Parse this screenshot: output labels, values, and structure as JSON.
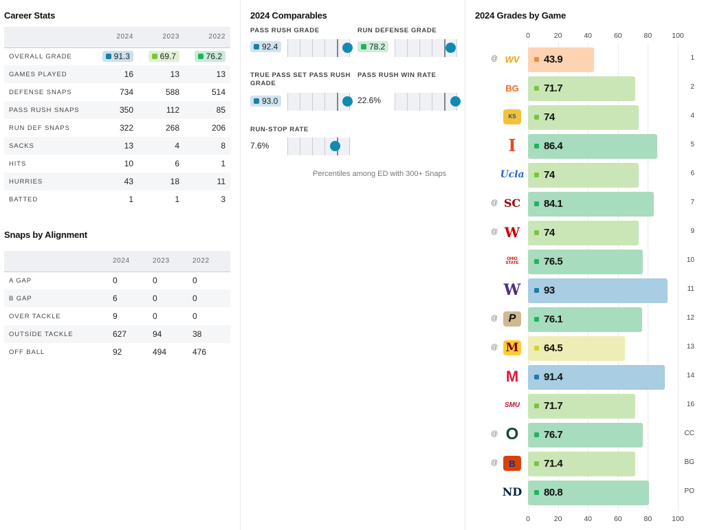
{
  "colors": {
    "elite": "#1b7fa6",
    "high": "#21b35c",
    "good": "#7cc43c",
    "average": "#d8cf2c",
    "below": "#f08a3c",
    "bar_elite": "#a9cde2",
    "bar_high": "#a8dcbe",
    "bar_good": "#cbe6b6",
    "bar_average": "#eeedb6",
    "bar_below": "#fdd3b3",
    "dot": "#118ab2"
  },
  "career": {
    "title": "Career Stats",
    "years": [
      "2024",
      "2023",
      "2022"
    ],
    "overall": {
      "label": "OVERALL GRADE",
      "grades": [
        {
          "value": "91.3",
          "tier": "elite"
        },
        {
          "value": "69.7",
          "tier": "good"
        },
        {
          "value": "76.2",
          "tier": "high"
        }
      ]
    },
    "rows": [
      {
        "label": "GAMES PLAYED",
        "values": [
          "16",
          "13",
          "13"
        ]
      },
      {
        "label": "DEFENSE SNAPS",
        "values": [
          "734",
          "588",
          "514"
        ]
      },
      {
        "label": "PASS RUSH SNAPS",
        "values": [
          "350",
          "112",
          "85"
        ]
      },
      {
        "label": "RUN DEF SNAPS",
        "values": [
          "322",
          "268",
          "206"
        ]
      },
      {
        "label": "SACKS",
        "values": [
          "13",
          "4",
          "8"
        ]
      },
      {
        "label": "HITS",
        "values": [
          "10",
          "6",
          "1"
        ]
      },
      {
        "label": "HURRIES",
        "values": [
          "43",
          "18",
          "11"
        ]
      },
      {
        "label": "BATTED",
        "values": [
          "1",
          "1",
          "3"
        ]
      }
    ]
  },
  "alignment": {
    "title": "Snaps by Alignment",
    "years": [
      "2024",
      "2023",
      "2022"
    ],
    "rows": [
      {
        "label": "A GAP",
        "values": [
          "0",
          "0",
          "0"
        ]
      },
      {
        "label": "B GAP",
        "values": [
          "6",
          "0",
          "0"
        ]
      },
      {
        "label": "OVER TACKLE",
        "values": [
          "9",
          "0",
          "0"
        ]
      },
      {
        "label": "OUTSIDE TACKLE",
        "values": [
          "627",
          "94",
          "38"
        ]
      },
      {
        "label": "OFF BALL",
        "values": [
          "92",
          "494",
          "476"
        ]
      }
    ]
  },
  "comparables": {
    "title": "2024 Comparables",
    "items": [
      {
        "label": "PASS RUSH GRADE",
        "value": "92.4",
        "tier": "elite",
        "percentile": 0.97
      },
      {
        "label": "RUN DEFENSE GRADE",
        "value": "78.2",
        "tier": "high",
        "percentile": 0.9
      },
      {
        "label": "TRUE PASS SET PASS RUSH GRADE",
        "value": "93.0",
        "tier": "elite",
        "percentile": 0.97
      },
      {
        "label": "PASS RUSH WIN RATE",
        "value": "22.6%",
        "tier": null,
        "percentile": 0.98
      },
      {
        "label": "RUN-STOP RATE",
        "value": "7.6%",
        "tier": null,
        "percentile": 0.77
      }
    ],
    "footnote": "Percentiles among ED with 300+ Snaps"
  },
  "games": {
    "title": "2024 Grades by Game",
    "axis_ticks": [
      "0",
      "20",
      "40",
      "60",
      "80",
      "100"
    ],
    "axis_max": 100,
    "rows": [
      {
        "away": true,
        "logo": "west-virginia-logo",
        "grade": "43.9",
        "tier": "below",
        "week": "1"
      },
      {
        "away": false,
        "logo": "bowling-green-logo",
        "grade": "71.7",
        "tier": "good",
        "week": "2"
      },
      {
        "away": false,
        "logo": "kent-state-logo",
        "grade": "74",
        "tier": "good",
        "week": "4"
      },
      {
        "away": false,
        "logo": "illinois-logo",
        "grade": "86.4",
        "tier": "high",
        "week": "5"
      },
      {
        "away": false,
        "logo": "ucla-logo",
        "grade": "74",
        "tier": "good",
        "week": "6"
      },
      {
        "away": true,
        "logo": "usc-logo",
        "grade": "84.1",
        "tier": "high",
        "week": "7"
      },
      {
        "away": true,
        "logo": "wisconsin-logo",
        "grade": "74",
        "tier": "good",
        "week": "9"
      },
      {
        "away": false,
        "logo": "ohio-state-logo",
        "grade": "76.5",
        "tier": "high",
        "week": "10"
      },
      {
        "away": false,
        "logo": "washington-logo",
        "grade": "93",
        "tier": "elite",
        "week": "11"
      },
      {
        "away": true,
        "logo": "purdue-logo",
        "grade": "76.1",
        "tier": "high",
        "week": "12"
      },
      {
        "away": true,
        "logo": "minnesota-logo",
        "grade": "64.5",
        "tier": "average",
        "week": "13"
      },
      {
        "away": false,
        "logo": "maryland-logo",
        "grade": "91.4",
        "tier": "elite",
        "week": "14"
      },
      {
        "away": false,
        "logo": "smu-logo",
        "grade": "71.7",
        "tier": "good",
        "week": "16"
      },
      {
        "away": true,
        "logo": "oregon-logo",
        "grade": "76.7",
        "tier": "high",
        "week": "CC"
      },
      {
        "away": true,
        "logo": "boise-state-logo",
        "grade": "71.4",
        "tier": "good",
        "week": "BG"
      },
      {
        "away": false,
        "logo": "notre-dame-logo",
        "grade": "80.8",
        "tier": "high",
        "week": "PO"
      }
    ],
    "logo_text": {
      "west-virginia-logo": "WV",
      "bowling-green-logo": "BG",
      "kent-state-logo": "KS",
      "illinois-logo": "I",
      "ucla-logo": "Ucla",
      "usc-logo": "SC",
      "wisconsin-logo": "W",
      "ohio-state-logo": "OHIO STATE",
      "washington-logo": "W",
      "purdue-logo": "P",
      "minnesota-logo": "M",
      "maryland-logo": "M",
      "smu-logo": "SMU",
      "oregon-logo": "O",
      "boise-state-logo": "B",
      "notre-dame-logo": "ND"
    },
    "away_marker": "@"
  }
}
